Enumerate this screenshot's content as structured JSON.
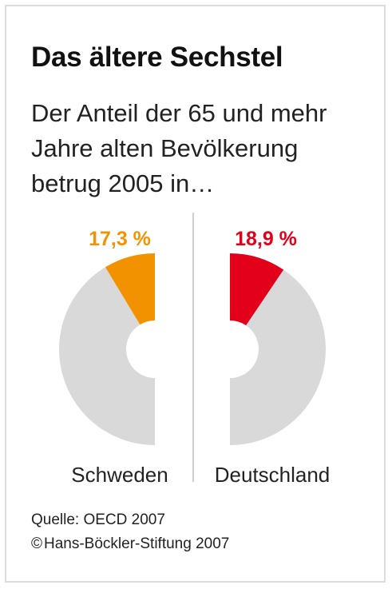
{
  "title": "Das ältere Sechstel",
  "subtitle_lines": [
    "Der Anteil der 65 und mehr",
    "Jahre alten Bevölkerung",
    "betrug 2005 in…"
  ],
  "chart_data": {
    "type": "pie",
    "unit": "%",
    "charts": [
      {
        "country": "Schweden",
        "value": 17.3,
        "label": "17,3 %",
        "color": "#f39200",
        "rest_color": "#d9d9d9",
        "side": "left"
      },
      {
        "country": "Deutschland",
        "value": 18.9,
        "label": "18,9 %",
        "color": "#e2001a",
        "rest_color": "#d9d9d9",
        "side": "right"
      }
    ]
  },
  "source": {
    "line1": "Quelle: OECD 2007",
    "copyright_symbol": "©",
    "line2": "Hans-Böckler-Stiftung 2007"
  }
}
